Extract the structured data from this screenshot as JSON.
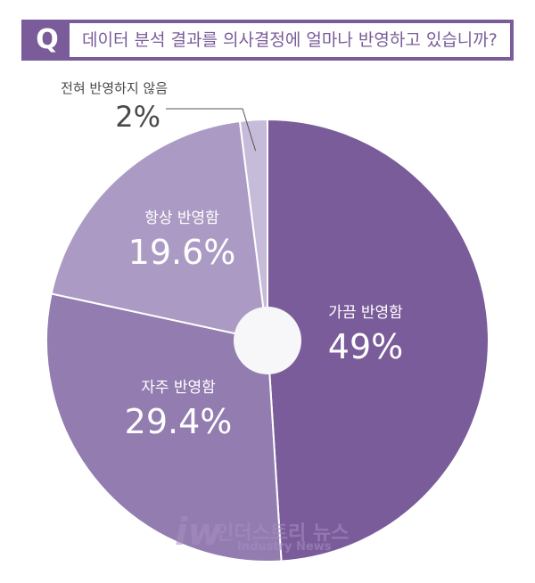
{
  "question": {
    "icon": "Q",
    "text": "데이터 분석 결과를 의사결정에 얼마나 반영하고 있습니까?"
  },
  "colors": {
    "accent": "#7a5c9a",
    "slice_sometimes": "#7a5c9a",
    "slice_often": "#927cb0",
    "slice_always": "#ab9bc4",
    "slice_never": "#c6bbd8",
    "center": "#f7f6f8"
  },
  "chart_data": {
    "type": "pie",
    "title": "데이터 분석 결과를 의사결정에 얼마나 반영하고 있습니까?",
    "slices": [
      {
        "label": "가끔 반영함",
        "value": 49,
        "value_label": "49%"
      },
      {
        "label": "자주 반영함",
        "value": 29.4,
        "value_label": "29.4%"
      },
      {
        "label": "항상 반영함",
        "value": 19.6,
        "value_label": "19.6%"
      },
      {
        "label": "전혀 반영하지 않음",
        "value": 2,
        "value_label": "2%"
      }
    ]
  },
  "watermark": {
    "logo": "iw",
    "name": "인더스트리 뉴스",
    "name_en": "Industry News"
  }
}
